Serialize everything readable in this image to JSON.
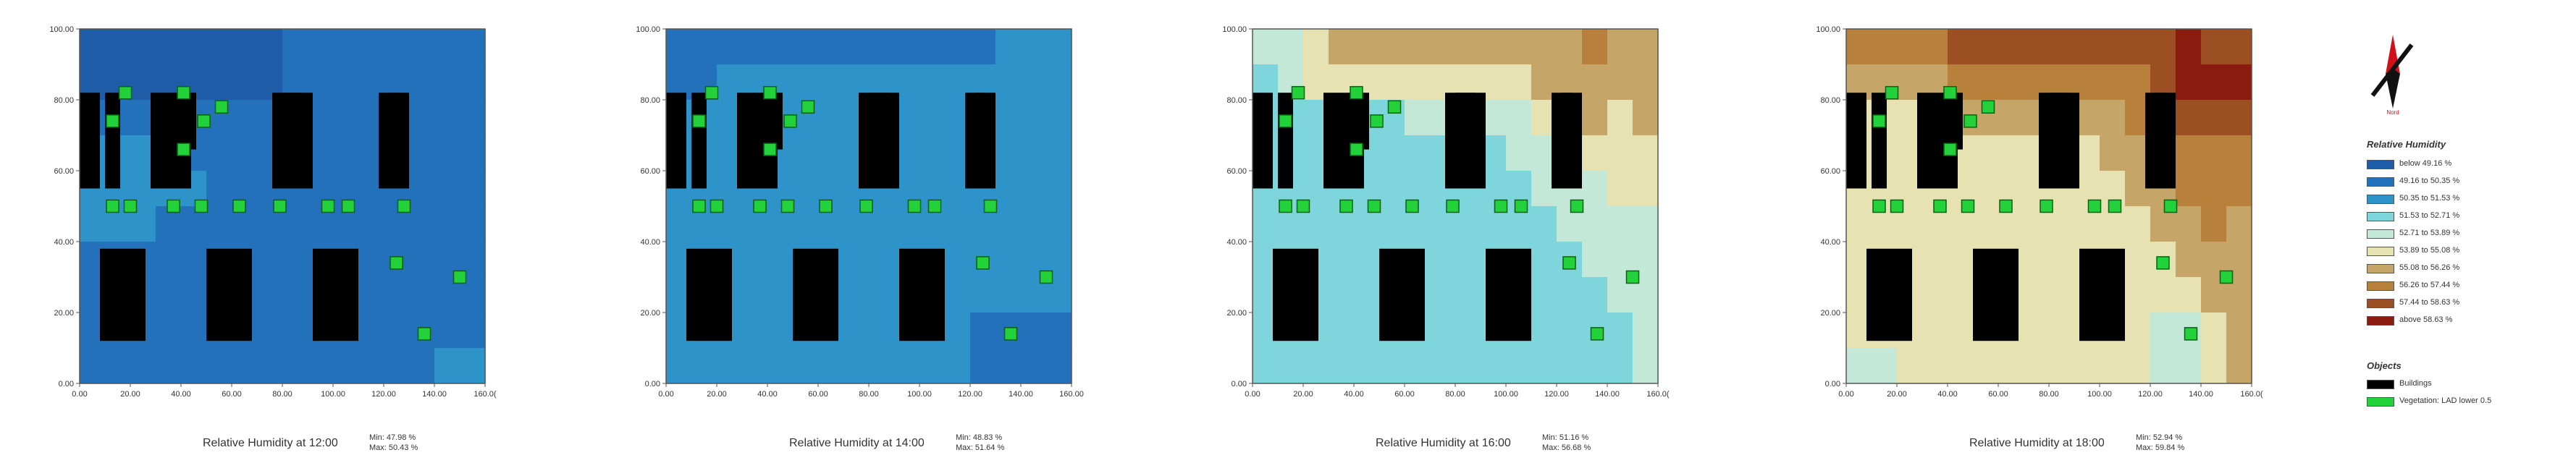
{
  "colors": [
    "#1e5ca8",
    "#2471bb",
    "#2d93c9",
    "#7ed5dc",
    "#c3e8d8",
    "#e6e2b2",
    "#c5a668",
    "#b7813c",
    "#9b4f23",
    "#8a1b0e"
  ],
  "chart_data": [
    {
      "type": "heatmap",
      "title": "Relative Humidity at 12:00",
      "min_label": "Min: 47.98 %",
      "max_label": "Max: 50.43 %",
      "xlim": [
        0,
        160
      ],
      "ylim": [
        0,
        100
      ],
      "x_ticks": [
        "0.00",
        "20.00",
        "40.00",
        "60.00",
        "80.00",
        "100.00",
        "120.00",
        "140.00",
        "160.0("
      ],
      "y_ticks": [
        "0.00",
        "20.00",
        "40.00",
        "60.00",
        "80.00",
        "100.00"
      ],
      "grid_levels": [
        [
          0,
          0,
          0,
          0,
          0,
          0,
          0,
          0,
          1,
          1,
          1,
          1,
          1,
          1,
          1,
          1
        ],
        [
          0,
          0,
          0,
          0,
          0,
          0,
          0,
          0,
          1,
          1,
          1,
          1,
          1,
          1,
          1,
          1
        ],
        [
          1,
          1,
          1,
          1,
          1,
          1,
          1,
          1,
          1,
          1,
          1,
          1,
          1,
          1,
          1,
          1
        ],
        [
          2,
          2,
          2,
          2,
          1,
          1,
          1,
          1,
          1,
          1,
          1,
          1,
          1,
          1,
          1,
          1
        ],
        [
          2,
          2,
          2,
          2,
          2,
          1,
          1,
          1,
          1,
          1,
          1,
          1,
          1,
          1,
          1,
          1
        ],
        [
          2,
          2,
          2,
          1,
          1,
          1,
          1,
          1,
          1,
          1,
          1,
          1,
          1,
          1,
          1,
          1
        ],
        [
          1,
          1,
          1,
          1,
          1,
          1,
          1,
          1,
          1,
          1,
          1,
          1,
          1,
          1,
          1,
          1
        ],
        [
          1,
          1,
          1,
          1,
          1,
          1,
          1,
          1,
          1,
          1,
          1,
          1,
          1,
          1,
          1,
          1
        ],
        [
          1,
          1,
          1,
          1,
          1,
          1,
          1,
          1,
          1,
          1,
          1,
          1,
          1,
          1,
          1,
          1
        ],
        [
          1,
          1,
          1,
          1,
          1,
          1,
          1,
          1,
          1,
          1,
          1,
          1,
          1,
          1,
          2,
          2
        ]
      ]
    },
    {
      "type": "heatmap",
      "title": "Relative Humidity at 14:00",
      "min_label": "Min: 48.83 %",
      "max_label": "Max: 51.64 %",
      "xlim": [
        0,
        160
      ],
      "ylim": [
        0,
        100
      ],
      "x_ticks": [
        "0.00",
        "20.00",
        "40.00",
        "60.00",
        "80.00",
        "100.00",
        "120.00",
        "140.00",
        "160.00"
      ],
      "y_ticks": [
        "0.00",
        "20.00",
        "40.00",
        "60.00",
        "80.00",
        "100.00"
      ],
      "grid_levels": [
        [
          1,
          1,
          1,
          1,
          1,
          1,
          1,
          1,
          1,
          1,
          1,
          1,
          1,
          2,
          2,
          2
        ],
        [
          1,
          1,
          2,
          2,
          2,
          2,
          2,
          2,
          2,
          2,
          2,
          2,
          2,
          2,
          2,
          2
        ],
        [
          2,
          2,
          2,
          2,
          2,
          2,
          2,
          2,
          2,
          2,
          2,
          2,
          2,
          2,
          2,
          2
        ],
        [
          2,
          2,
          2,
          2,
          2,
          2,
          2,
          2,
          2,
          2,
          2,
          2,
          2,
          2,
          2,
          2
        ],
        [
          2,
          2,
          2,
          2,
          2,
          2,
          2,
          2,
          2,
          2,
          2,
          2,
          2,
          2,
          2,
          2
        ],
        [
          2,
          2,
          2,
          2,
          2,
          2,
          2,
          2,
          2,
          2,
          2,
          2,
          2,
          2,
          2,
          2
        ],
        [
          2,
          2,
          2,
          2,
          2,
          2,
          2,
          2,
          2,
          2,
          2,
          2,
          2,
          2,
          2,
          2
        ],
        [
          2,
          2,
          2,
          2,
          2,
          2,
          2,
          2,
          2,
          2,
          2,
          2,
          2,
          2,
          2,
          2
        ],
        [
          2,
          2,
          2,
          2,
          2,
          2,
          2,
          2,
          2,
          2,
          2,
          2,
          1,
          1,
          1,
          1
        ],
        [
          2,
          2,
          2,
          2,
          2,
          2,
          2,
          2,
          2,
          2,
          2,
          2,
          1,
          1,
          1,
          1
        ]
      ]
    },
    {
      "type": "heatmap",
      "title": "Relative Humidity at 16:00",
      "min_label": "Min: 51.16 %",
      "max_label": "Max: 56.68 %",
      "xlim": [
        0,
        160
      ],
      "ylim": [
        0,
        100
      ],
      "x_ticks": [
        "0.00",
        "20.00",
        "40.00",
        "60.00",
        "80.00",
        "100.00",
        "120.00",
        "140.00",
        "160.0("
      ],
      "y_ticks": [
        "0.00",
        "20.00",
        "40.00",
        "60.00",
        "80.00",
        "100.00"
      ],
      "grid_levels": [
        [
          4,
          4,
          5,
          6,
          6,
          6,
          6,
          6,
          6,
          6,
          6,
          6,
          6,
          7,
          6,
          6
        ],
        [
          3,
          4,
          5,
          5,
          5,
          5,
          5,
          5,
          5,
          5,
          5,
          6,
          6,
          6,
          6,
          6
        ],
        [
          3,
          3,
          3,
          3,
          3,
          3,
          4,
          4,
          4,
          4,
          4,
          5,
          5,
          6,
          5,
          6
        ],
        [
          3,
          3,
          3,
          3,
          3,
          3,
          3,
          3,
          3,
          3,
          4,
          4,
          4,
          5,
          5,
          5
        ],
        [
          3,
          3,
          3,
          3,
          3,
          3,
          3,
          3,
          3,
          3,
          3,
          4,
          4,
          4,
          5,
          5
        ],
        [
          3,
          3,
          3,
          3,
          3,
          3,
          3,
          3,
          3,
          3,
          3,
          3,
          4,
          4,
          4,
          4
        ],
        [
          3,
          3,
          3,
          3,
          3,
          3,
          3,
          3,
          3,
          3,
          3,
          3,
          3,
          4,
          4,
          4
        ],
        [
          3,
          3,
          3,
          3,
          3,
          3,
          3,
          3,
          3,
          3,
          3,
          3,
          3,
          3,
          4,
          4
        ],
        [
          3,
          3,
          3,
          3,
          3,
          3,
          3,
          3,
          3,
          3,
          3,
          3,
          3,
          3,
          3,
          4
        ],
        [
          3,
          3,
          3,
          3,
          3,
          3,
          3,
          3,
          3,
          3,
          3,
          3,
          3,
          3,
          3,
          4
        ]
      ]
    },
    {
      "type": "heatmap",
      "title": "Relative Humidity at 18:00",
      "min_label": "Min: 52.94 %",
      "max_label": "Max: 59.84 %",
      "xlim": [
        0,
        160
      ],
      "ylim": [
        0,
        100
      ],
      "x_ticks": [
        "0.00",
        "20.00",
        "40.00",
        "60.00",
        "80.00",
        "100.00",
        "120.00",
        "140.00",
        "160.0("
      ],
      "y_ticks": [
        "0.00",
        "20.00",
        "40.00",
        "60.00",
        "80.00",
        "100.00"
      ],
      "grid_levels": [
        [
          7,
          7,
          7,
          7,
          8,
          8,
          8,
          8,
          8,
          8,
          8,
          8,
          8,
          9,
          8,
          8
        ],
        [
          6,
          6,
          6,
          6,
          7,
          7,
          7,
          7,
          7,
          7,
          7,
          7,
          8,
          9,
          9,
          9
        ],
        [
          5,
          5,
          5,
          5,
          6,
          6,
          6,
          6,
          6,
          6,
          6,
          7,
          7,
          8,
          8,
          8
        ],
        [
          5,
          5,
          5,
          5,
          5,
          5,
          5,
          5,
          5,
          5,
          6,
          6,
          7,
          7,
          7,
          7
        ],
        [
          5,
          5,
          5,
          5,
          5,
          5,
          5,
          5,
          5,
          5,
          5,
          6,
          6,
          7,
          7,
          7
        ],
        [
          5,
          5,
          5,
          5,
          5,
          5,
          5,
          5,
          5,
          5,
          5,
          5,
          6,
          6,
          7,
          6
        ],
        [
          5,
          5,
          5,
          5,
          5,
          5,
          5,
          5,
          5,
          5,
          5,
          5,
          5,
          6,
          6,
          6
        ],
        [
          5,
          5,
          5,
          5,
          5,
          5,
          5,
          5,
          5,
          5,
          5,
          5,
          5,
          5,
          6,
          6
        ],
        [
          5,
          5,
          5,
          5,
          5,
          5,
          5,
          5,
          5,
          5,
          5,
          5,
          4,
          4,
          5,
          6
        ],
        [
          4,
          4,
          5,
          5,
          5,
          5,
          5,
          5,
          5,
          5,
          5,
          5,
          4,
          4,
          5,
          6
        ]
      ]
    }
  ],
  "buildings": [
    {
      "x": [
        0,
        8
      ],
      "y": [
        55,
        82
      ]
    },
    {
      "x": [
        10,
        16
      ],
      "y": [
        55,
        82
      ]
    },
    {
      "x": [
        28,
        44
      ],
      "y": [
        55,
        82
      ]
    },
    {
      "x": [
        38,
        46
      ],
      "y": [
        66,
        82
      ]
    },
    {
      "x": [
        76,
        92
      ],
      "y": [
        55,
        82
      ]
    },
    {
      "x": [
        80,
        88
      ],
      "y": [
        68,
        82
      ]
    },
    {
      "x": [
        118,
        130
      ],
      "y": [
        55,
        82
      ]
    },
    {
      "x": [
        122,
        126
      ],
      "y": [
        68,
        82
      ]
    },
    {
      "x": [
        8,
        26
      ],
      "y": [
        12,
        38
      ]
    },
    {
      "x": [
        50,
        68
      ],
      "y": [
        12,
        38
      ]
    },
    {
      "x": [
        92,
        110
      ],
      "y": [
        12,
        38
      ]
    }
  ],
  "vegetation": [
    [
      18,
      82
    ],
    [
      41,
      82
    ],
    [
      13,
      74
    ],
    [
      49,
      74
    ],
    [
      56,
      78
    ],
    [
      41,
      66
    ],
    [
      13,
      50
    ],
    [
      20,
      50
    ],
    [
      37,
      50
    ],
    [
      48,
      50
    ],
    [
      63,
      50
    ],
    [
      79,
      50
    ],
    [
      98,
      50
    ],
    [
      106,
      50
    ],
    [
      128,
      50
    ],
    [
      125,
      34
    ],
    [
      150,
      30
    ],
    [
      136,
      14
    ]
  ],
  "legend": {
    "north_label": "Nord",
    "title": "Relative Humidity",
    "items": [
      "below 49.16 %",
      "49.16 to 50.35 %",
      "50.35 to 51.53 %",
      "51.53 to 52.71 %",
      "52.71 to 53.89 %",
      "53.89 to 55.08 %",
      "55.08 to 56.26 %",
      "56.26 to 57.44 %",
      "57.44 to 58.63 %",
      "above 58.63 %"
    ],
    "objects_title": "Objects",
    "objects": [
      "Buildings",
      "Vegetation: LAD lower 0.5"
    ],
    "object_colors": [
      "#000000",
      "#23d13a"
    ]
  }
}
